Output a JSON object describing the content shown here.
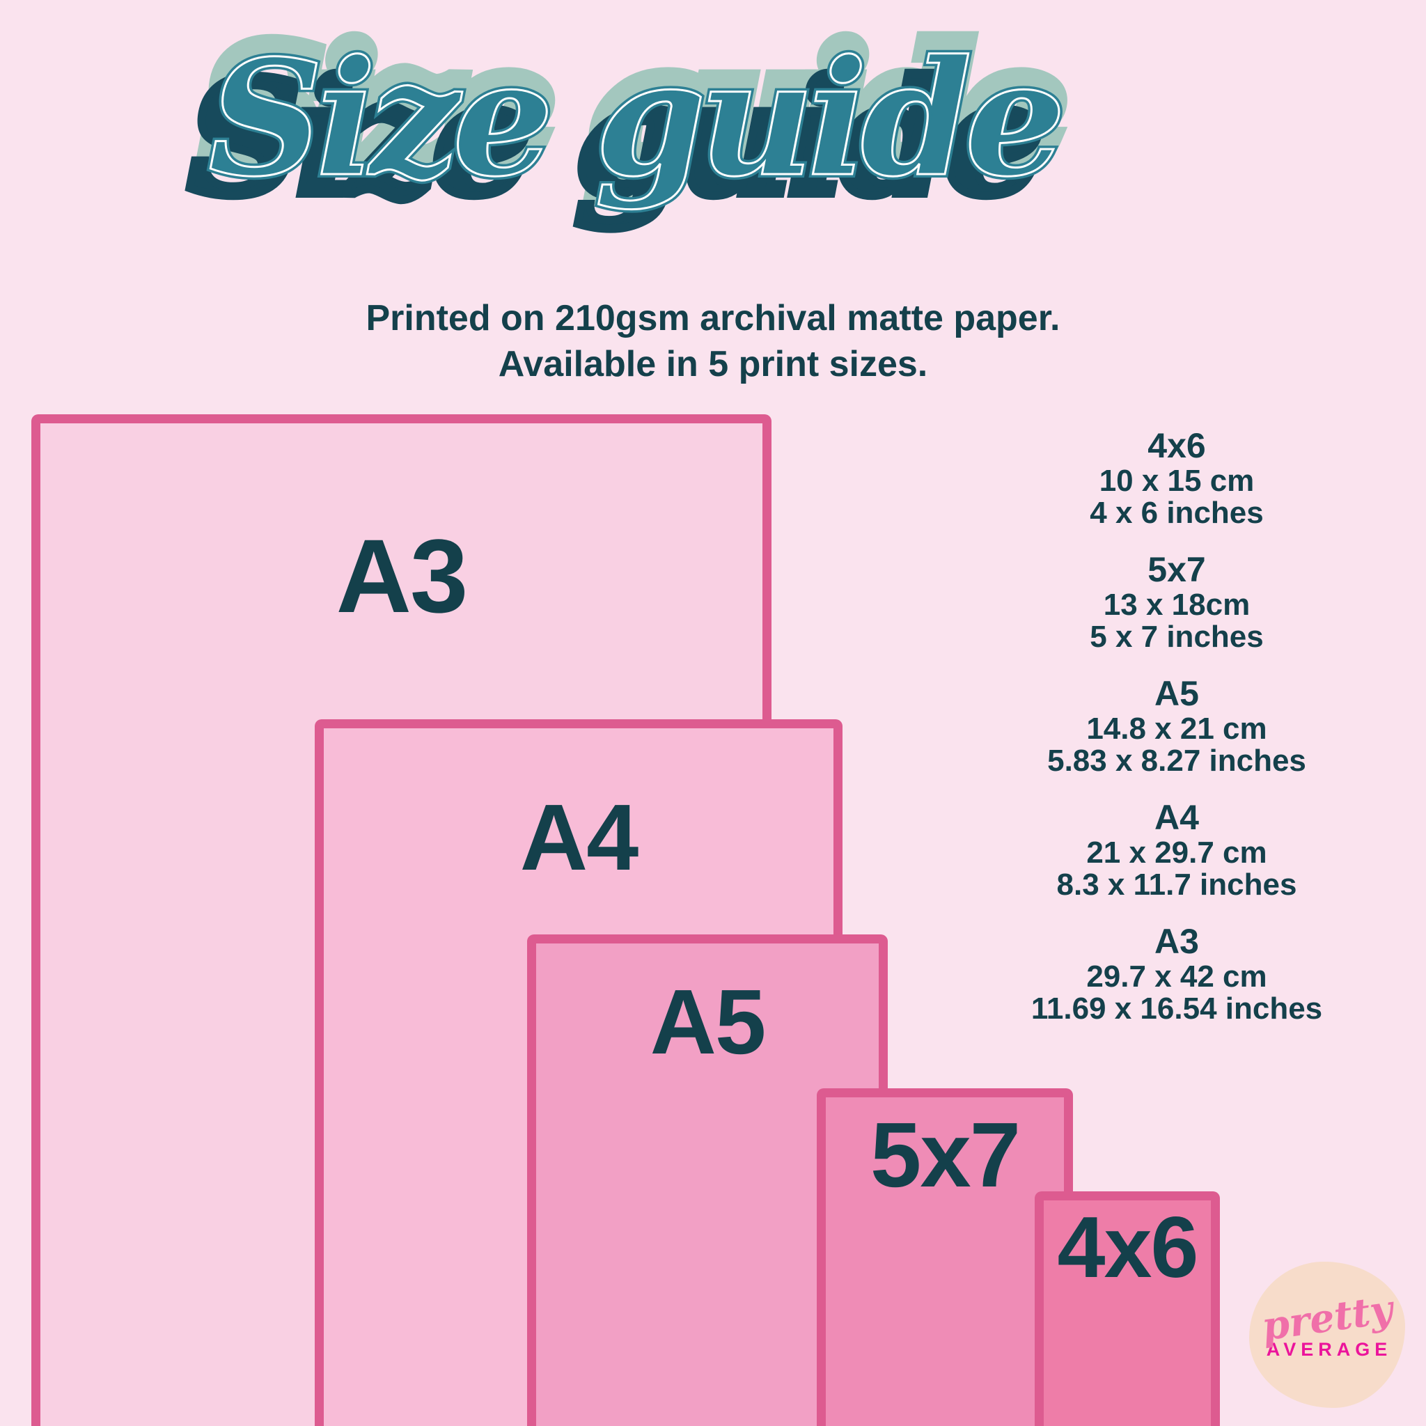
{
  "page": {
    "background_color": "#fae3ee",
    "text_color": "#14404b",
    "rect_border_color": "#dd5b90"
  },
  "title": {
    "text": "Size guide",
    "main_color": "#2d8094",
    "shadow_color": "#174a5c",
    "halo_color": "#a3c7be",
    "inline_color": "#ffffff"
  },
  "subtitle": {
    "line1": "Printed on 210gsm archival matte paper.",
    "line2": "Available in 5 print sizes."
  },
  "diagram": {
    "sizes": [
      {
        "label": "A3",
        "fill": "#f9d0e3"
      },
      {
        "label": "A4",
        "fill": "#f8bcd7"
      },
      {
        "label": "A5",
        "fill": "#f2a0c5"
      },
      {
        "label": "5x7",
        "fill": "#ef8cb6"
      },
      {
        "label": "4x6",
        "fill": "#ee7da8"
      }
    ]
  },
  "specs": [
    {
      "name": "4x6",
      "cm": "10 x 15 cm",
      "inches": "4 x 6 inches"
    },
    {
      "name": "5x7",
      "cm": "13 x 18cm",
      "inches": "5 x 7 inches"
    },
    {
      "name": "A5",
      "cm": "14.8 x 21 cm",
      "inches": "5.83 x 8.27 inches"
    },
    {
      "name": "A4",
      "cm": "21 x 29.7 cm",
      "inches": "8.3 x 11.7 inches"
    },
    {
      "name": "A3",
      "cm": "29.7 x 42 cm",
      "inches": "11.69 x 16.54 inches"
    }
  ],
  "logo": {
    "word1": "pretty",
    "word2": "AVERAGE",
    "word1_color": "#f06fa9",
    "word2_color": "#eb149b",
    "blob_color": "#f7dcca"
  }
}
